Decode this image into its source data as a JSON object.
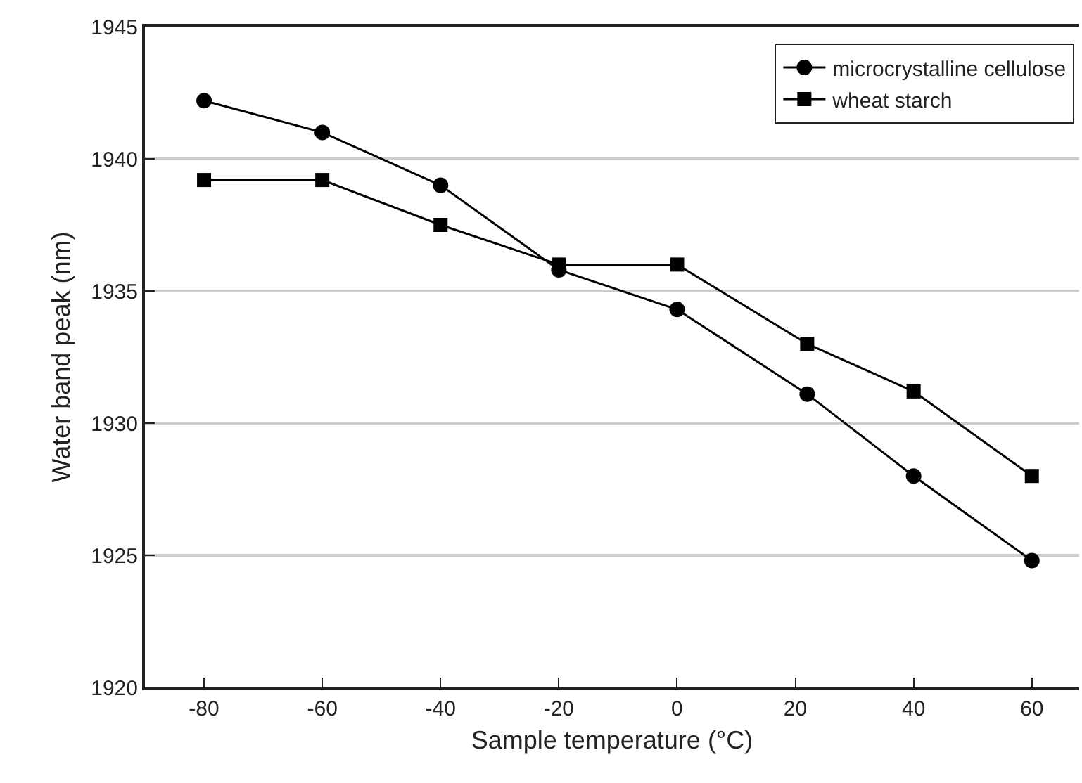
{
  "chart_data": {
    "type": "line",
    "xlabel": "Sample temperature (°C)",
    "ylabel": "Water band peak (nm)",
    "x": [
      -80,
      -60,
      -40,
      -20,
      0,
      22,
      40,
      60
    ],
    "series": [
      {
        "name": "microcrystalline cellulose",
        "color": "#000000",
        "marker": "circle",
        "values": [
          1942.2,
          1941.0,
          1939.0,
          1935.8,
          1934.3,
          1931.1,
          1928.0,
          1924.8
        ]
      },
      {
        "name": "wheat starch",
        "color": "#000000",
        "marker": "square",
        "values": [
          1939.2,
          1939.2,
          1937.5,
          1936.0,
          1936.0,
          1933.0,
          1931.2,
          1928.0
        ]
      }
    ],
    "xlim": [
      -90,
      68
    ],
    "xticks": [
      -80,
      -60,
      -40,
      -20,
      0,
      20,
      40,
      60
    ],
    "ylim": [
      1920,
      1945
    ],
    "yticks": [
      1920,
      1925,
      1930,
      1935,
      1940,
      1945
    ],
    "grid": "y",
    "legend": "top right",
    "line_style": "solid"
  }
}
